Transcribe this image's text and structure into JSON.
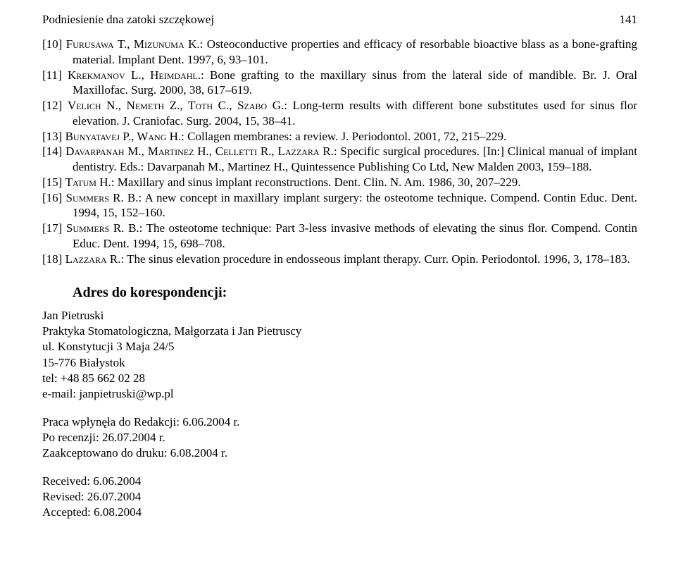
{
  "colors": {
    "background": "#ffffff",
    "text": "#000000"
  },
  "typography": {
    "font_family": "Times New Roman",
    "body_fontsize_pt": 13,
    "heading_fontsize_pt": 15,
    "heading_weight": "bold",
    "line_height": 1.28
  },
  "header": {
    "running_title": "Podniesienie dna zatoki szczękowej",
    "page_number": "141"
  },
  "references": [
    {
      "num": "[10]",
      "author_sc": "Furusawa T., Mizunuma K.",
      "rest": ": Osteoconductive properties and efficacy of resorbable bioactive blass as a bone-grafting material. Implant Dent. 1997, 6, 93–101."
    },
    {
      "num": "[11]",
      "author_sc": "Krekmanov L., Heimdahl.",
      "rest": ": Bone grafting to the maxillary sinus from the lateral side of mandible. Br. J. Oral Maxillofac. Surg. 2000, 38, 617–619."
    },
    {
      "num": "[12]",
      "author_sc": "Velich N., Nemeth Z., Toth C., Szabo G.",
      "rest": ": Long-term results with different bone substitutes used for sinus flor elevation. J. Craniofac. Surg. 2004, 15, 38–41."
    },
    {
      "num": "[13]",
      "author_sc": "Bunyatavej P., Wang H.",
      "rest": ": Collagen membranes: a review. J. Periodontol. 2001, 72, 215–229."
    },
    {
      "num": "[14]",
      "author_sc": "Davarpanah M., Martinez H., Celletti R., Lazzara R.",
      "rest": ": Specific surgical procedures. [In:] Clinical manual of implant dentistry. Eds.: Davarpanah M., Martinez H., Quintessence Publishing Co Ltd, New Malden 2003, 159–188."
    },
    {
      "num": "[15]",
      "author_sc": "Tatum H.",
      "rest": ": Maxillary and sinus implant reconstructions. Dent. Clin. N. Am. 1986, 30, 207–229."
    },
    {
      "num": "[16]",
      "author_sc": "Summers R. B.",
      "rest": ": A new concept in maxillary implant surgery: the osteotome technique. Compend. Contin Educ. Dent. 1994, 15, 152–160."
    },
    {
      "num": "[17]",
      "author_sc": "Summers R. B.",
      "rest": ": The osteotome technique: Part 3-less invasive methods of elevating the sinus flor. Compend. Contin Educ. Dent. 1994, 15, 698–708."
    },
    {
      "num": "[18]",
      "author_sc": "Lazzara R.",
      "rest": ": The sinus elevation procedure in endosseous implant therapy. Curr. Opin. Periodontol. 1996, 3, 178–183."
    }
  ],
  "correspondence": {
    "heading": "Adres do korespondencji:",
    "lines": [
      "Jan Pietruski",
      "Praktyka Stomatologiczna, Małgorzata i Jan Pietruscy",
      "ul. Konstytucji 3 Maja 24/5",
      "15-776 Białystok",
      "tel: +48 85 662 02 28",
      "e-mail: janpietruski@wp.pl"
    ]
  },
  "submission": {
    "lines": [
      "Praca wpłynęła do Redakcji: 6.06.2004 r.",
      "Po recenzji: 26.07.2004 r.",
      "Zaakceptowano do druku: 6.08.2004 r."
    ]
  },
  "received_block": {
    "lines": [
      "Received: 6.06.2004",
      "Revised: 26.07.2004",
      "Accepted: 6.08.2004"
    ]
  }
}
